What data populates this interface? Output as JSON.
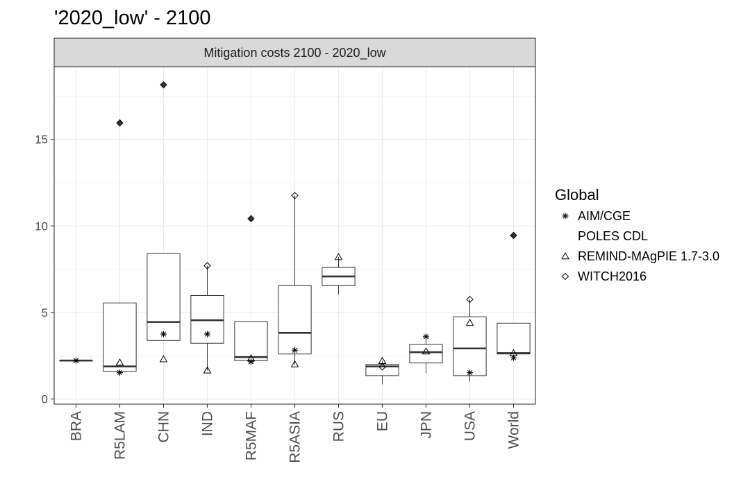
{
  "chart_data": {
    "type": "box",
    "title": "'2020_low' - 2100",
    "facet_label": "Mitigation costs 2100 - 2020_low",
    "xlabel": "",
    "ylabel": "",
    "ylim": [
      -0.3,
      19.2
    ],
    "yticks": [
      0,
      5,
      10,
      15
    ],
    "categories": [
      "BRA",
      "R5LAM",
      "CHN",
      "IND",
      "R5MAF",
      "R5ASIA",
      "RUS",
      "EU",
      "JPN",
      "USA",
      "World"
    ],
    "boxes": [
      {
        "category": "BRA",
        "lower": 2.22,
        "q1": 2.22,
        "median": 2.22,
        "q3": 2.22,
        "upper": 2.22,
        "outliers": []
      },
      {
        "category": "R5LAM",
        "lower": 1.6,
        "q1": 1.6,
        "median": 1.88,
        "q3": 5.55,
        "upper": 5.55,
        "outliers": [
          15.95
        ]
      },
      {
        "category": "CHN",
        "lower": 3.38,
        "q1": 3.38,
        "median": 4.45,
        "q3": 8.4,
        "upper": 8.4,
        "outliers": [
          18.15
        ]
      },
      {
        "category": "IND",
        "lower": 1.65,
        "q1": 3.22,
        "median": 4.55,
        "q3": 5.98,
        "upper": 7.7,
        "outliers": []
      },
      {
        "category": "R5MAF",
        "lower": 2.22,
        "q1": 2.22,
        "median": 2.42,
        "q3": 4.48,
        "upper": 4.48,
        "outliers": [
          10.42
        ]
      },
      {
        "category": "R5ASIA",
        "lower": 2.0,
        "q1": 2.6,
        "median": 3.82,
        "q3": 6.55,
        "upper": 11.75,
        "outliers": []
      },
      {
        "category": "RUS",
        "lower": 6.05,
        "q1": 6.55,
        "median": 7.08,
        "q3": 7.6,
        "upper": 8.2,
        "outliers": []
      },
      {
        "category": "EU",
        "lower": 0.85,
        "q1": 1.35,
        "median": 1.88,
        "q3": 2.0,
        "upper": 2.2,
        "outliers": []
      },
      {
        "category": "JPN",
        "lower": 1.5,
        "q1": 2.08,
        "median": 2.7,
        "q3": 3.15,
        "upper": 3.6,
        "outliers": []
      },
      {
        "category": "USA",
        "lower": 1.0,
        "q1": 1.35,
        "median": 2.92,
        "q3": 4.75,
        "upper": 5.75,
        "outliers": []
      },
      {
        "category": "World",
        "lower": 2.6,
        "q1": 2.6,
        "median": 2.65,
        "q3": 4.38,
        "upper": 4.38,
        "outliers": [
          9.45
        ]
      }
    ],
    "series": [
      {
        "name": "AIM/CGE",
        "shape": "asterisk",
        "points": [
          {
            "x": "BRA",
            "y": 2.22
          },
          {
            "x": "R5LAM",
            "y": 1.52
          },
          {
            "x": "CHN",
            "y": 3.75
          },
          {
            "x": "IND",
            "y": 3.75
          },
          {
            "x": "R5MAF",
            "y": 2.15
          },
          {
            "x": "R5ASIA",
            "y": 2.82
          },
          {
            "x": "JPN",
            "y": 3.6
          },
          {
            "x": "USA",
            "y": 1.52
          },
          {
            "x": "World",
            "y": 2.38
          }
        ]
      },
      {
        "name": "POLES CDL",
        "shape": "none",
        "points": []
      },
      {
        "name": "REMIND-MAgPIE 1.7-3.0",
        "shape": "triangle",
        "points": [
          {
            "x": "R5LAM",
            "y": 2.1
          },
          {
            "x": "CHN",
            "y": 2.3
          },
          {
            "x": "IND",
            "y": 1.65
          },
          {
            "x": "R5MAF",
            "y": 2.35
          },
          {
            "x": "R5ASIA",
            "y": 2.0
          },
          {
            "x": "RUS",
            "y": 8.2
          },
          {
            "x": "EU",
            "y": 2.2
          },
          {
            "x": "JPN",
            "y": 2.75
          },
          {
            "x": "USA",
            "y": 4.4
          },
          {
            "x": "World",
            "y": 2.65
          }
        ]
      },
      {
        "name": "WITCH2016",
        "shape": "diamond",
        "points": [
          {
            "x": "R5LAM",
            "y": 15.95
          },
          {
            "x": "CHN",
            "y": 18.15
          },
          {
            "x": "IND",
            "y": 7.7
          },
          {
            "x": "R5MAF",
            "y": 10.42
          },
          {
            "x": "R5ASIA",
            "y": 11.75
          },
          {
            "x": "EU",
            "y": 1.85
          },
          {
            "x": "USA",
            "y": 5.75
          },
          {
            "x": "World",
            "y": 9.45
          }
        ]
      }
    ],
    "legend": {
      "title": "Global",
      "position": "right"
    },
    "grid": true
  }
}
